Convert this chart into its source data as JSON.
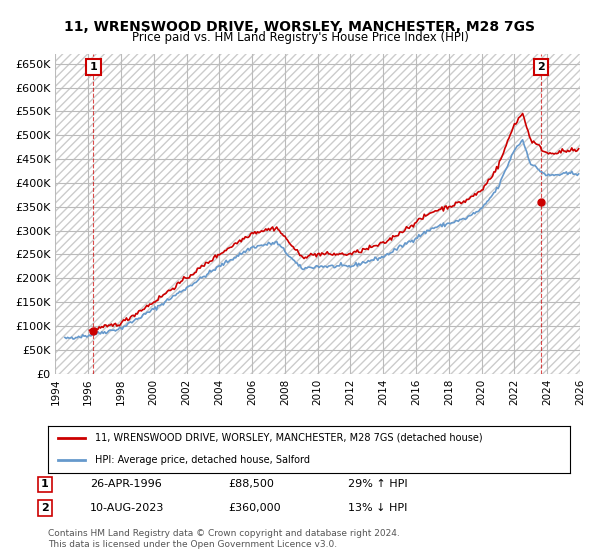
{
  "title": "11, WRENSWOOD DRIVE, WORSLEY, MANCHESTER, M28 7GS",
  "subtitle": "Price paid vs. HM Land Registry's House Price Index (HPI)",
  "legend_house": "11, WRENSWOOD DRIVE, WORSLEY, MANCHESTER, M28 7GS (detached house)",
  "legend_hpi": "HPI: Average price, detached house, Salford",
  "sale1_label": "1",
  "sale1_date": "26-APR-1996",
  "sale1_price": "£88,500",
  "sale1_hpi": "29% ↑ HPI",
  "sale1_x": 1996.32,
  "sale1_y": 88500,
  "sale2_label": "2",
  "sale2_date": "10-AUG-2023",
  "sale2_price": "£360,000",
  "sale2_hpi": "13% ↓ HPI",
  "sale2_x": 2023.61,
  "sale2_y": 360000,
  "footer": "Contains HM Land Registry data © Crown copyright and database right 2024.\nThis data is licensed under the Open Government Licence v3.0.",
  "house_color": "#cc0000",
  "hpi_color": "#6699cc",
  "background_color": "#ffffff",
  "plot_bg_color": "#ffffff",
  "hatch_color": "#dddddd",
  "ylim": [
    0,
    670000
  ],
  "xlim_start": 1994,
  "xlim_end": 2026
}
